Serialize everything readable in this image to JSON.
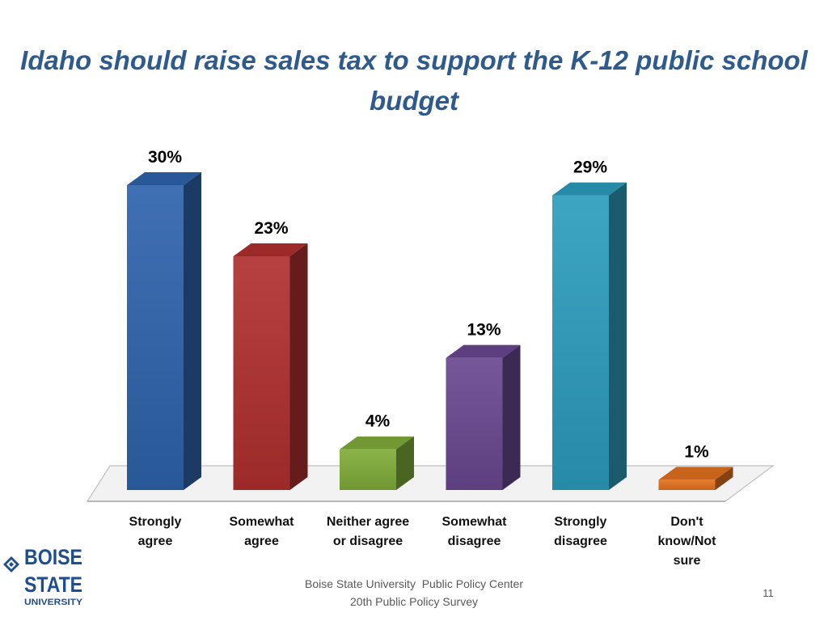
{
  "colors": {
    "title": "#2e5a8c",
    "series": [
      "#2f64ad",
      "#b0302f",
      "#80ad3a",
      "#6a4890",
      "#2c9dbd",
      "#e3711f"
    ],
    "logo": "#1f4e8c"
  },
  "chart_data": {
    "type": "bar",
    "three_d": true,
    "title": "Idaho should raise sales tax to support the K-12 public school budget",
    "categories": [
      "Strongly agree",
      "Somewhat agree",
      "Neither agree or disagree",
      "Somewhat disagree",
      "Strongly disagree",
      "Don't know/Not sure"
    ],
    "category_lines": [
      [
        "Strongly",
        "agree"
      ],
      [
        "Somewhat",
        "agree"
      ],
      [
        "Neither agree",
        "or disagree"
      ],
      [
        "Somewhat",
        "disagree"
      ],
      [
        "Strongly",
        "disagree"
      ],
      [
        "Don't",
        "know/Not",
        "sure"
      ]
    ],
    "values": [
      30,
      23,
      4,
      13,
      29,
      1
    ],
    "data_labels": [
      "30%",
      "23%",
      "4%",
      "13%",
      "29%",
      "1%"
    ],
    "unit": "%",
    "ylim": [
      0,
      30
    ],
    "grid": false,
    "legend": false
  },
  "footer": {
    "source_line1": "Boise State University  Public Policy Center",
    "source_line2": "20th Public Policy Survey",
    "slide_number": "11"
  },
  "logo": {
    "line1": "BOISE",
    "line2": "STATE",
    "line3": "UNIVERSITY"
  }
}
